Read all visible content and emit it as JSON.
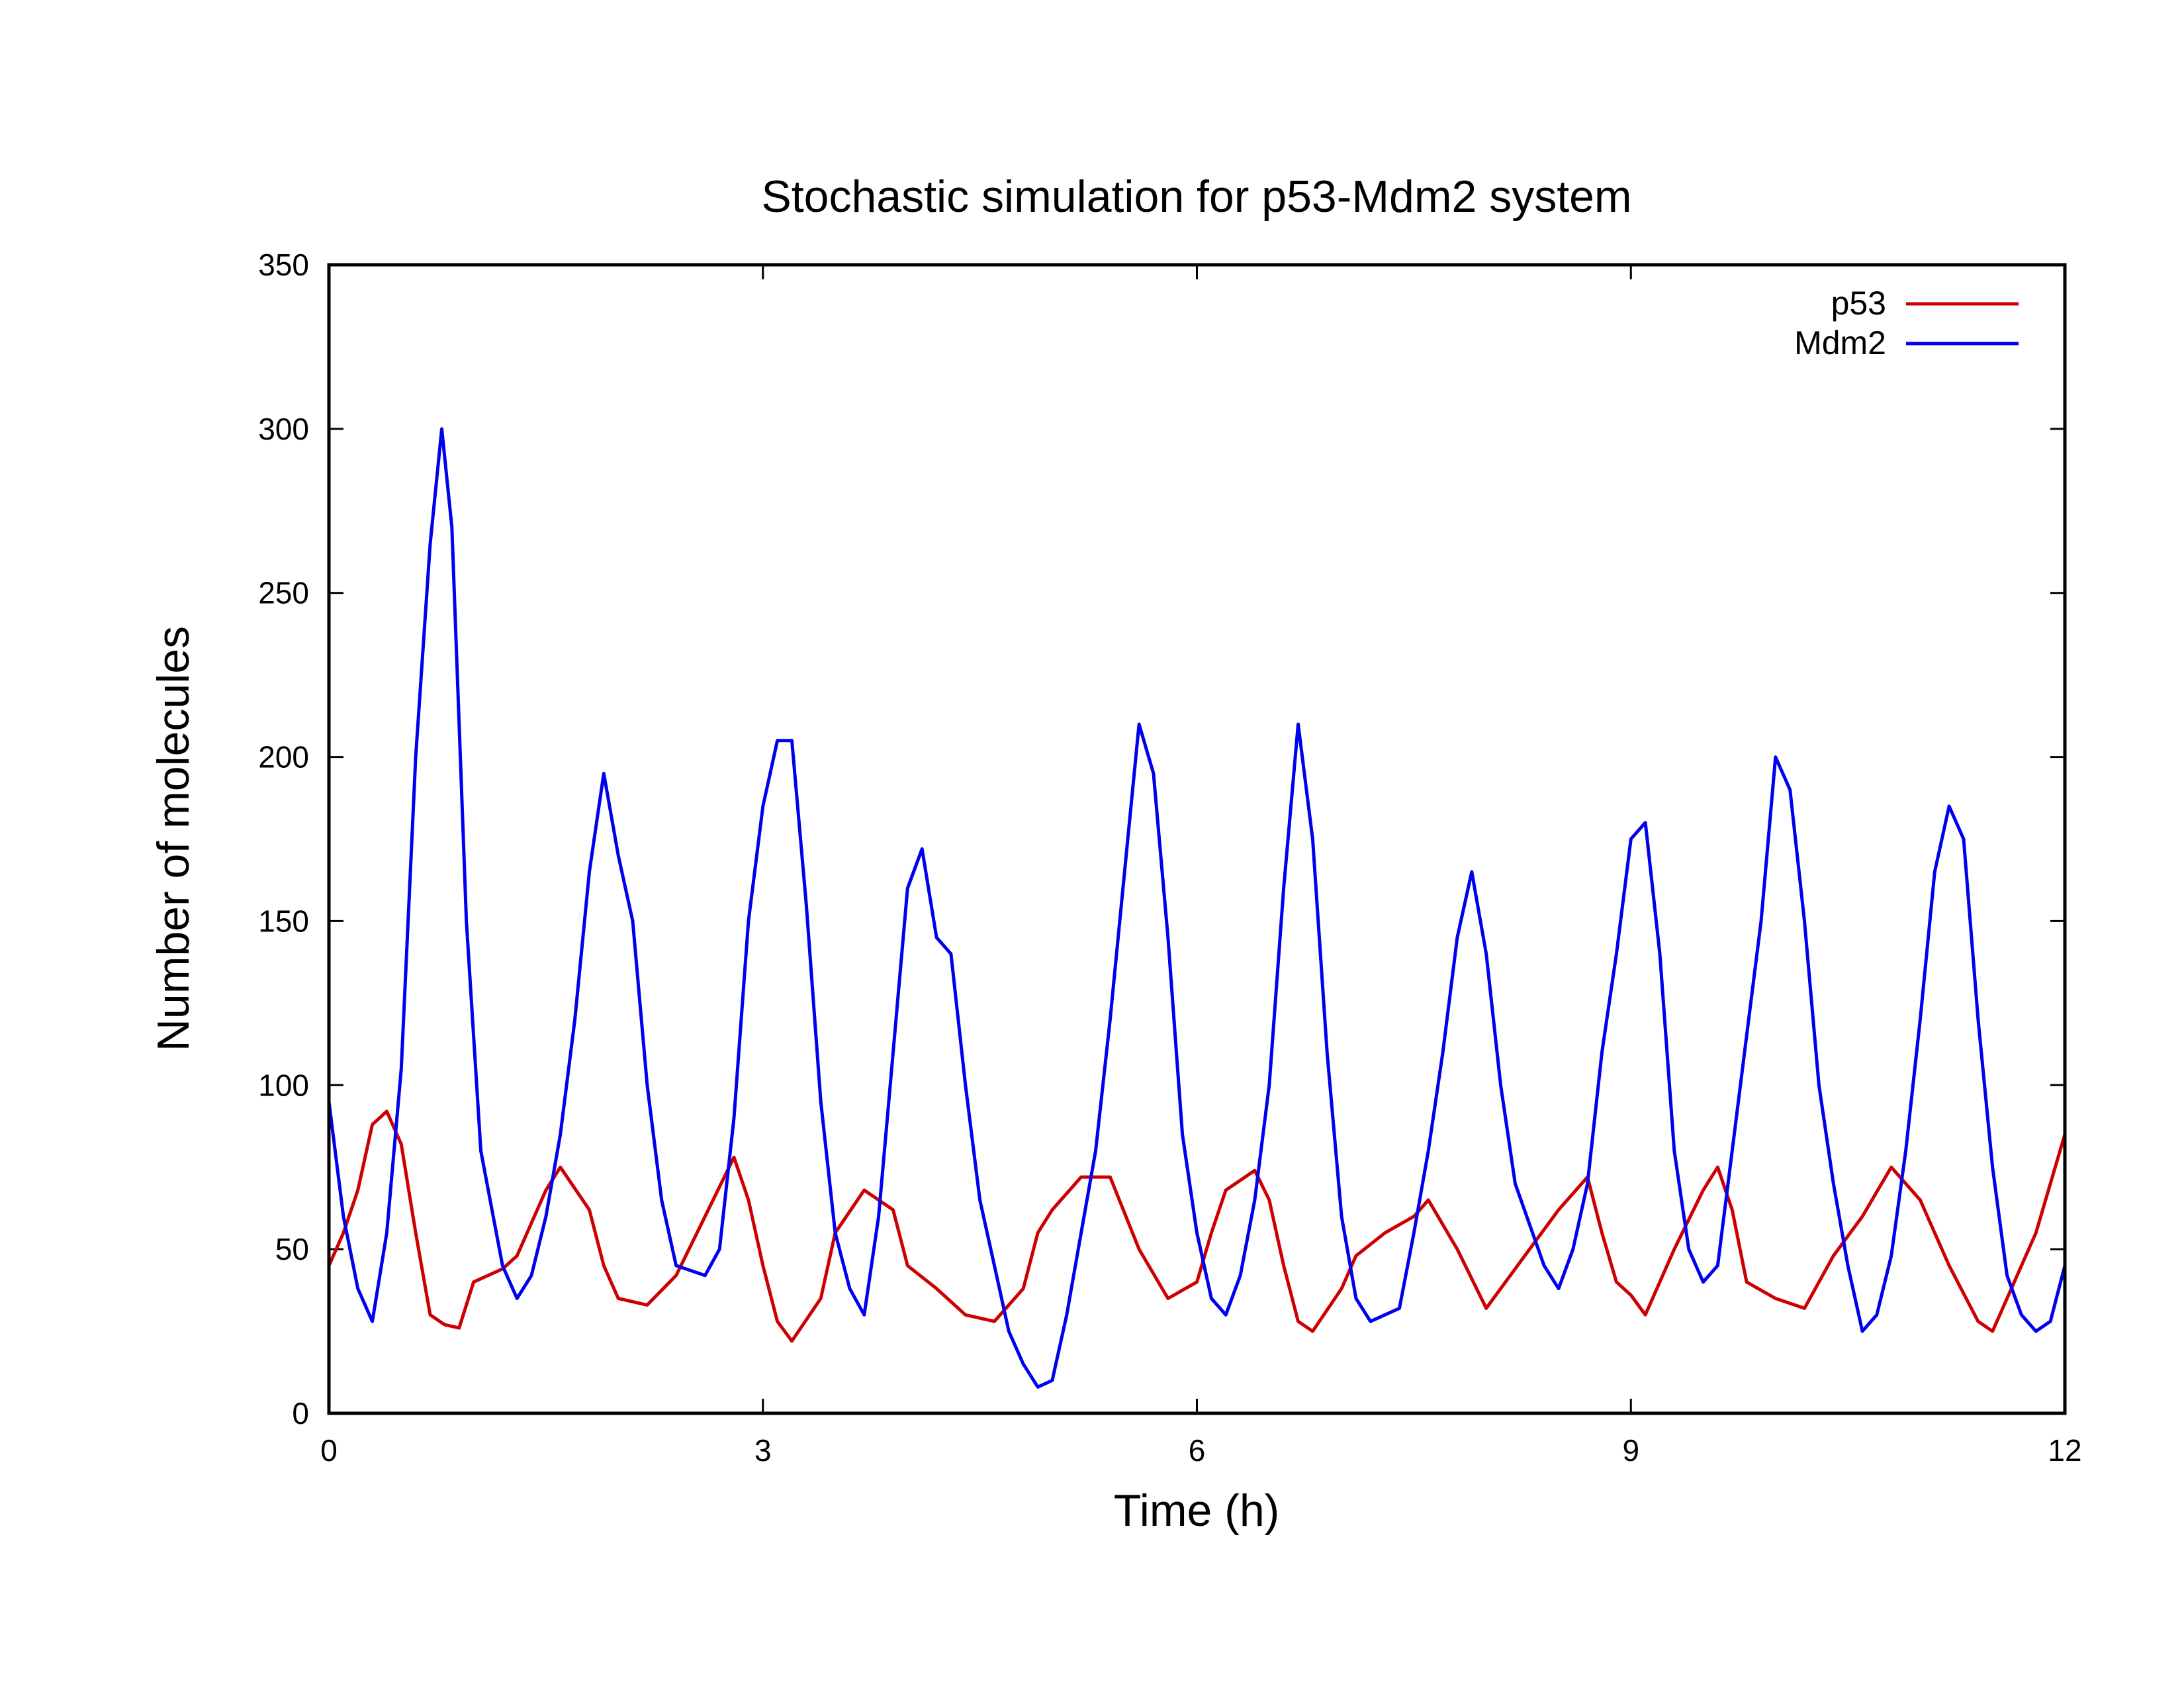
{
  "chart_data": {
    "type": "line",
    "title": "Stochastic simulation for p53-Mdm2 system",
    "xlabel": "Time (h)",
    "ylabel": "Number of molecules",
    "xlim": [
      0,
      12
    ],
    "ylim": [
      0,
      350
    ],
    "xticks": [
      0,
      3,
      6,
      9,
      12
    ],
    "yticks": [
      0,
      50,
      100,
      150,
      200,
      250,
      300,
      350
    ],
    "grid": false,
    "legend_position": "top-right",
    "series": [
      {
        "name": "p53",
        "color": "#cc0000",
        "points": [
          [
            0,
            45
          ],
          [
            0.1,
            55
          ],
          [
            0.2,
            68
          ],
          [
            0.3,
            88
          ],
          [
            0.4,
            92
          ],
          [
            0.5,
            82
          ],
          [
            0.6,
            55
          ],
          [
            0.7,
            30
          ],
          [
            0.8,
            27
          ],
          [
            0.9,
            26
          ],
          [
            1.0,
            40
          ],
          [
            1.2,
            44
          ],
          [
            1.3,
            48
          ],
          [
            1.4,
            58
          ],
          [
            1.5,
            68
          ],
          [
            1.6,
            75
          ],
          [
            1.8,
            62
          ],
          [
            1.9,
            45
          ],
          [
            2.0,
            35
          ],
          [
            2.2,
            33
          ],
          [
            2.4,
            42
          ],
          [
            2.6,
            60
          ],
          [
            2.8,
            78
          ],
          [
            2.9,
            65
          ],
          [
            3.0,
            45
          ],
          [
            3.1,
            28
          ],
          [
            3.2,
            22
          ],
          [
            3.4,
            35
          ],
          [
            3.5,
            55
          ],
          [
            3.7,
            68
          ],
          [
            3.9,
            62
          ],
          [
            4.0,
            45
          ],
          [
            4.2,
            38
          ],
          [
            4.4,
            30
          ],
          [
            4.6,
            28
          ],
          [
            4.8,
            38
          ],
          [
            4.9,
            55
          ],
          [
            5.0,
            62
          ],
          [
            5.2,
            72
          ],
          [
            5.4,
            72
          ],
          [
            5.6,
            50
          ],
          [
            5.8,
            35
          ],
          [
            6.0,
            40
          ],
          [
            6.1,
            55
          ],
          [
            6.2,
            68
          ],
          [
            6.4,
            74
          ],
          [
            6.5,
            65
          ],
          [
            6.6,
            45
          ],
          [
            6.7,
            28
          ],
          [
            6.8,
            25
          ],
          [
            7.0,
            38
          ],
          [
            7.1,
            48
          ],
          [
            7.3,
            55
          ],
          [
            7.5,
            60
          ],
          [
            7.6,
            65
          ],
          [
            7.8,
            50
          ],
          [
            8.0,
            32
          ],
          [
            8.1,
            38
          ],
          [
            8.3,
            50
          ],
          [
            8.5,
            62
          ],
          [
            8.7,
            72
          ],
          [
            8.8,
            55
          ],
          [
            8.9,
            40
          ],
          [
            9.0,
            36
          ],
          [
            9.1,
            30
          ],
          [
            9.3,
            50
          ],
          [
            9.5,
            68
          ],
          [
            9.6,
            75
          ],
          [
            9.7,
            62
          ],
          [
            9.8,
            40
          ],
          [
            10.0,
            35
          ],
          [
            10.2,
            32
          ],
          [
            10.4,
            48
          ],
          [
            10.6,
            60
          ],
          [
            10.8,
            75
          ],
          [
            11.0,
            65
          ],
          [
            11.2,
            45
          ],
          [
            11.4,
            28
          ],
          [
            11.5,
            25
          ],
          [
            11.6,
            35
          ],
          [
            11.8,
            55
          ],
          [
            11.9,
            70
          ],
          [
            12.0,
            85
          ]
        ]
      },
      {
        "name": "Mdm2",
        "color": "#0000ee",
        "points": [
          [
            0,
            95
          ],
          [
            0.1,
            60
          ],
          [
            0.2,
            38
          ],
          [
            0.3,
            28
          ],
          [
            0.4,
            55
          ],
          [
            0.5,
            105
          ],
          [
            0.6,
            200
          ],
          [
            0.7,
            265
          ],
          [
            0.78,
            300
          ],
          [
            0.85,
            270
          ],
          [
            0.95,
            150
          ],
          [
            1.05,
            80
          ],
          [
            1.2,
            45
          ],
          [
            1.3,
            35
          ],
          [
            1.4,
            42
          ],
          [
            1.5,
            60
          ],
          [
            1.6,
            85
          ],
          [
            1.7,
            120
          ],
          [
            1.8,
            165
          ],
          [
            1.9,
            195
          ],
          [
            2.0,
            170
          ],
          [
            2.1,
            150
          ],
          [
            2.2,
            100
          ],
          [
            2.3,
            65
          ],
          [
            2.4,
            45
          ],
          [
            2.6,
            42
          ],
          [
            2.7,
            50
          ],
          [
            2.8,
            90
          ],
          [
            2.9,
            150
          ],
          [
            3.0,
            185
          ],
          [
            3.1,
            205
          ],
          [
            3.2,
            205
          ],
          [
            3.3,
            155
          ],
          [
            3.4,
            95
          ],
          [
            3.5,
            55
          ],
          [
            3.6,
            38
          ],
          [
            3.7,
            30
          ],
          [
            3.8,
            60
          ],
          [
            3.9,
            110
          ],
          [
            4.0,
            160
          ],
          [
            4.1,
            172
          ],
          [
            4.2,
            145
          ],
          [
            4.3,
            140
          ],
          [
            4.4,
            100
          ],
          [
            4.5,
            65
          ],
          [
            4.6,
            45
          ],
          [
            4.7,
            25
          ],
          [
            4.8,
            15
          ],
          [
            4.9,
            8
          ],
          [
            5.0,
            10
          ],
          [
            5.1,
            30
          ],
          [
            5.2,
            55
          ],
          [
            5.3,
            80
          ],
          [
            5.4,
            120
          ],
          [
            5.5,
            165
          ],
          [
            5.6,
            210
          ],
          [
            5.7,
            195
          ],
          [
            5.8,
            145
          ],
          [
            5.9,
            85
          ],
          [
            6.0,
            55
          ],
          [
            6.1,
            35
          ],
          [
            6.2,
            30
          ],
          [
            6.3,
            42
          ],
          [
            6.4,
            65
          ],
          [
            6.5,
            100
          ],
          [
            6.6,
            160
          ],
          [
            6.7,
            210
          ],
          [
            6.8,
            175
          ],
          [
            6.9,
            110
          ],
          [
            7.0,
            60
          ],
          [
            7.1,
            35
          ],
          [
            7.2,
            28
          ],
          [
            7.4,
            32
          ],
          [
            7.5,
            55
          ],
          [
            7.6,
            80
          ],
          [
            7.7,
            110
          ],
          [
            7.8,
            145
          ],
          [
            7.9,
            165
          ],
          [
            8.0,
            140
          ],
          [
            8.1,
            100
          ],
          [
            8.2,
            70
          ],
          [
            8.4,
            45
          ],
          [
            8.5,
            38
          ],
          [
            8.6,
            50
          ],
          [
            8.7,
            70
          ],
          [
            8.8,
            110
          ],
          [
            8.9,
            140
          ],
          [
            9.0,
            175
          ],
          [
            9.1,
            180
          ],
          [
            9.2,
            140
          ],
          [
            9.3,
            80
          ],
          [
            9.4,
            50
          ],
          [
            9.5,
            40
          ],
          [
            9.6,
            45
          ],
          [
            9.7,
            80
          ],
          [
            9.8,
            115
          ],
          [
            9.9,
            150
          ],
          [
            10.0,
            200
          ],
          [
            10.1,
            190
          ],
          [
            10.2,
            150
          ],
          [
            10.3,
            100
          ],
          [
            10.4,
            70
          ],
          [
            10.5,
            45
          ],
          [
            10.6,
            25
          ],
          [
            10.7,
            30
          ],
          [
            10.8,
            48
          ],
          [
            10.9,
            80
          ],
          [
            11.0,
            120
          ],
          [
            11.1,
            165
          ],
          [
            11.2,
            185
          ],
          [
            11.3,
            175
          ],
          [
            11.4,
            120
          ],
          [
            11.5,
            75
          ],
          [
            11.6,
            42
          ],
          [
            11.7,
            30
          ],
          [
            11.8,
            25
          ],
          [
            11.9,
            28
          ],
          [
            12.0,
            45
          ]
        ]
      }
    ]
  }
}
